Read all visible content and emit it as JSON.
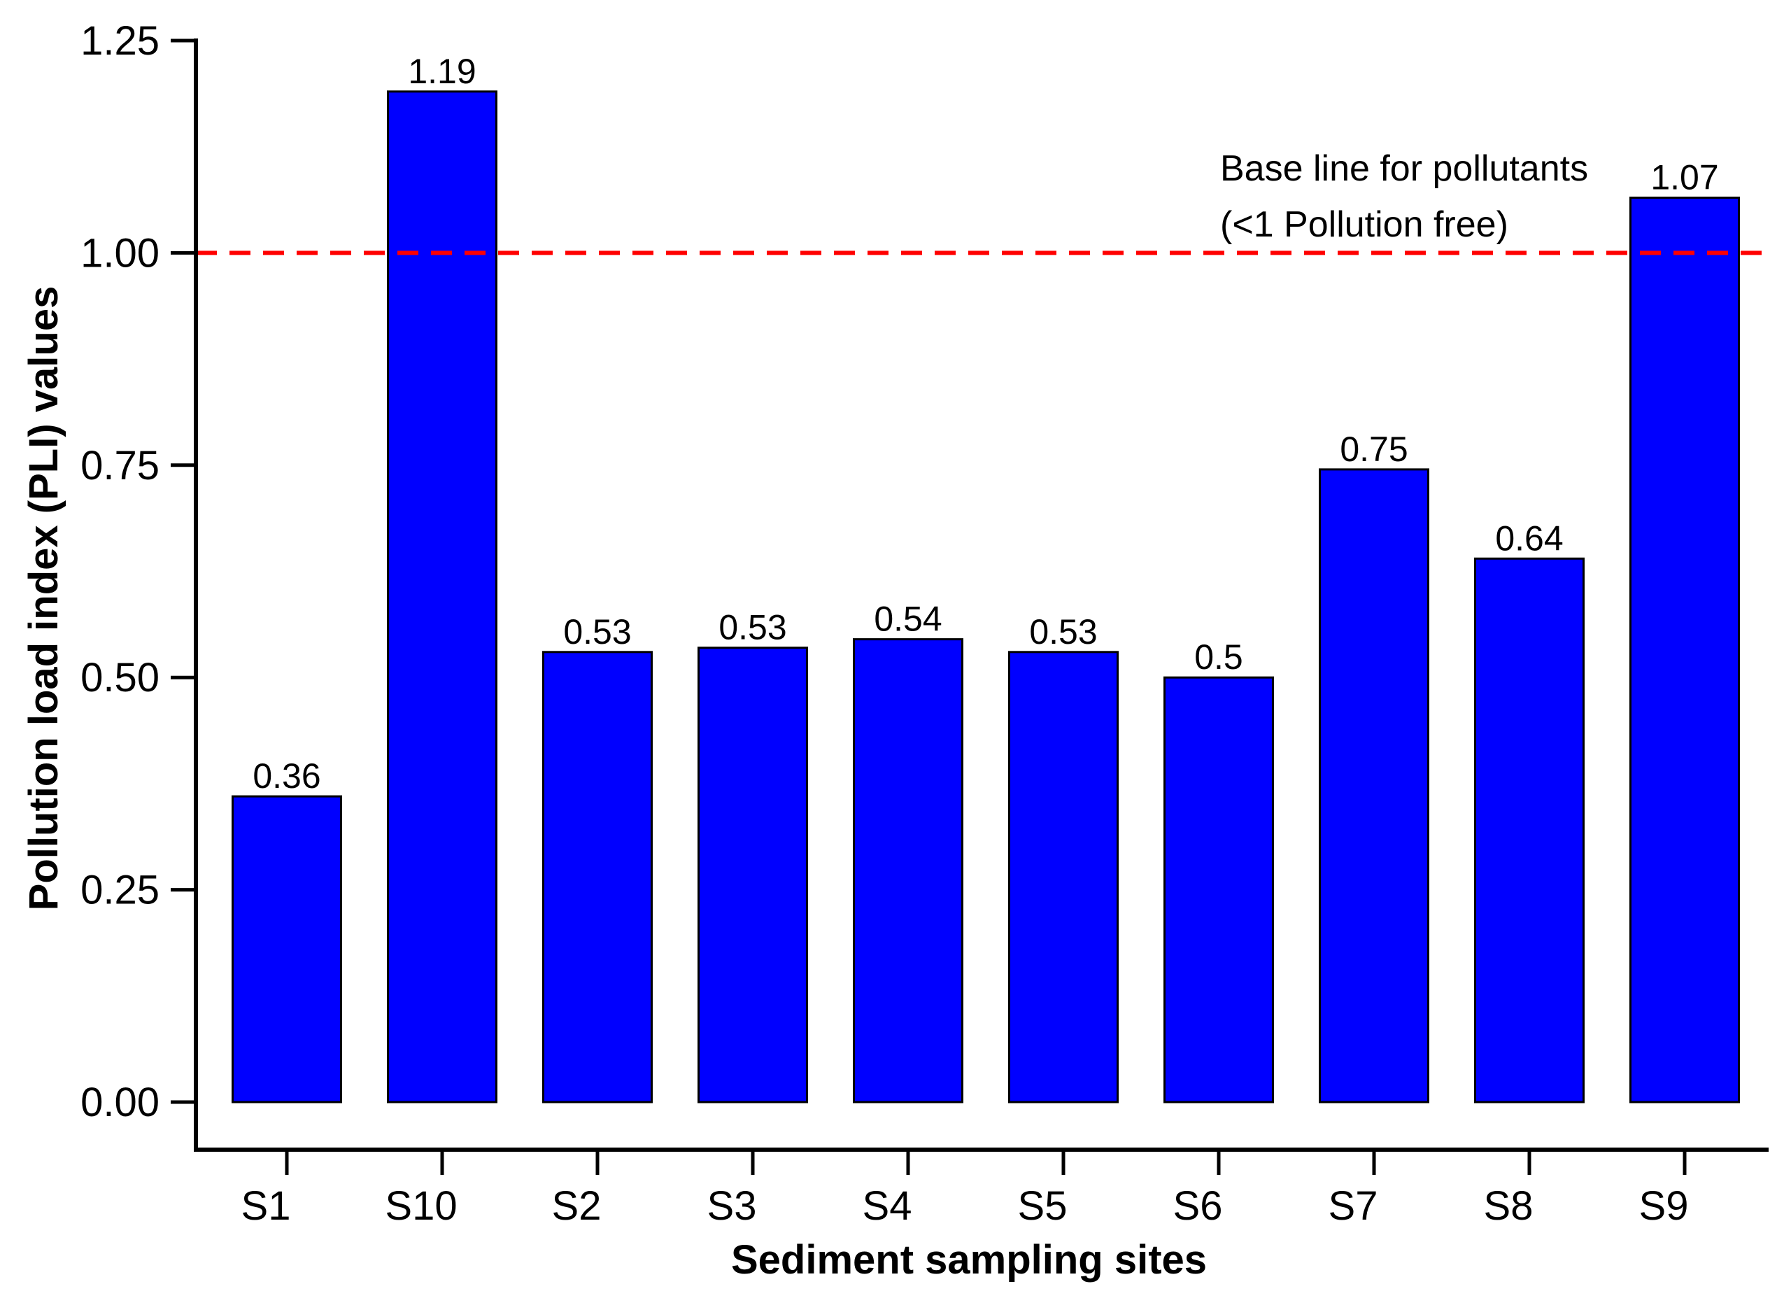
{
  "chart_data": {
    "type": "bar",
    "xlabel": "Sediment sampling sites",
    "ylabel": "Pollution load index (PLI) values",
    "categories": [
      "S1",
      "S10",
      "S2",
      "S3",
      "S4",
      "S5",
      "S6",
      "S7",
      "S8",
      "S9"
    ],
    "values": [
      0.36,
      1.19,
      0.53,
      0.535,
      0.545,
      0.53,
      0.5,
      0.745,
      0.64,
      1.065
    ],
    "data_labels": [
      "0.36",
      "1.19",
      "0.53",
      "0.53",
      "0.54",
      "0.53",
      "0.5",
      "0.75",
      "0.64",
      "1.07"
    ],
    "ylim": [
      0,
      1.25
    ],
    "yticks": [
      0,
      0.25,
      0.5,
      0.75,
      1.0,
      1.25
    ],
    "ytick_labels": [
      "0.00",
      "0.25",
      "0.50",
      "0.75",
      "1.00",
      "1.25"
    ],
    "bar_color": "#0000ff",
    "grid": false,
    "reference_line": {
      "value": 1.0,
      "color": "#ff0000",
      "style": "dashed",
      "annotation_lines": [
        "Base line for pollutants",
        "(<1 Pollution free)"
      ]
    }
  }
}
